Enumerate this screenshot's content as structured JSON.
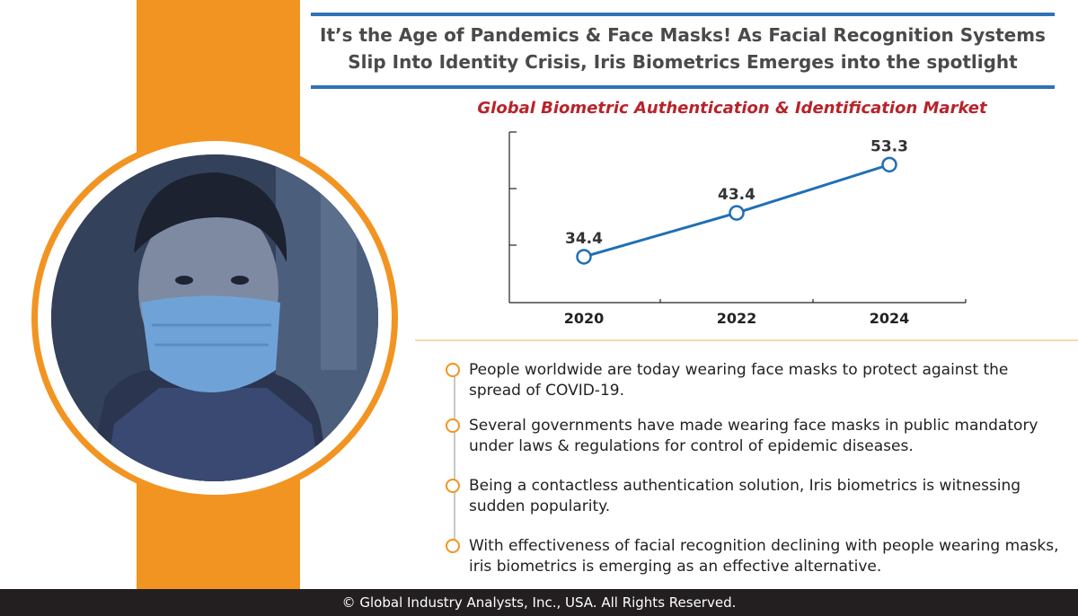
{
  "headline": {
    "line1": "It’s the Age of Pandemics & Face Masks! As Facial Recognition Systems",
    "line2": "Slip Into Identity Crisis, Iris Biometrics Emerges into the spotlight"
  },
  "chart_data": {
    "type": "line",
    "title": "Global Biometric Authentication & Identification Market",
    "categories": [
      "2020",
      "2022",
      "2024"
    ],
    "values": [
      34.4,
      43.4,
      53.3
    ],
    "ylim": [
      25,
      60
    ],
    "grid": false,
    "colors": {
      "line": "#1f6fb5",
      "title": "#b8232a"
    }
  },
  "bullets": [
    "People worldwide are today wearing face masks to protect against the spread of COVID-19.",
    "Several governments have made wearing face masks in public mandatory under laws & regulations for control of epidemic diseases.",
    "Being a contactless authentication solution, Iris biometrics is witnessing sudden popularity.",
    "With effectiveness of facial recognition declining with people wearing masks, iris biometrics is emerging as an effective alternative."
  ],
  "footer": "© Global Industry Analysts, Inc., USA. All Rights Reserved.",
  "colors": {
    "accent": "#f29421",
    "rule": "#2f72b8",
    "footer_bg": "#231f20"
  }
}
